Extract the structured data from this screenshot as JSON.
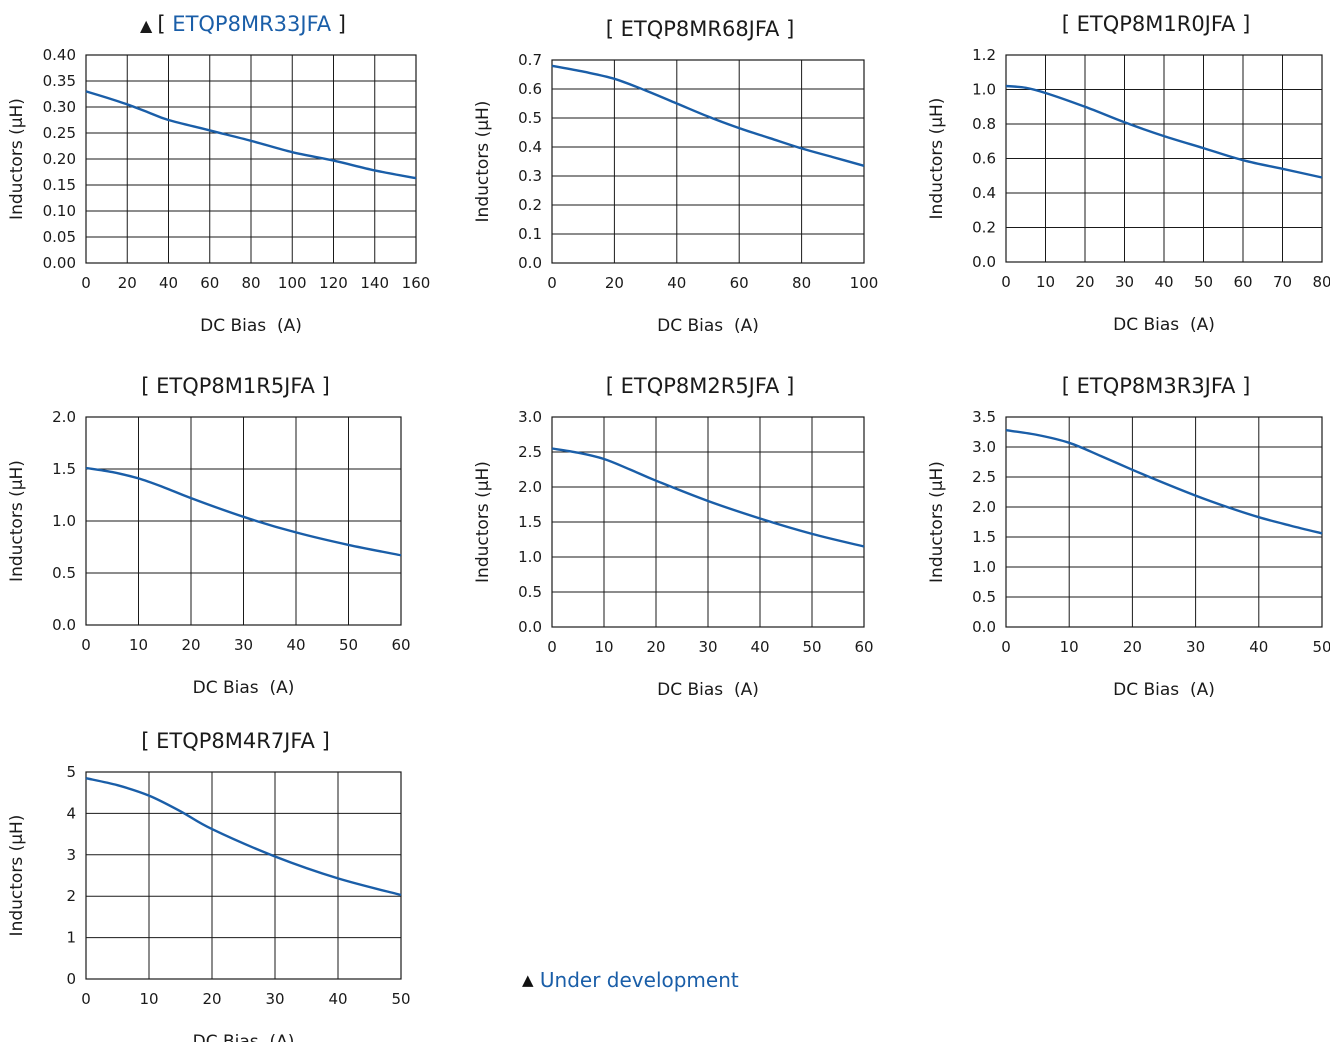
{
  "chart_data": [
    {
      "type": "line",
      "title_prefix": "▲",
      "title_open": "[ ",
      "title": "ETQP8MR33JFA",
      "title_close": " ]",
      "title_link": true,
      "xlabel": "DC Bias  (A)",
      "ylabel": "Inductors (µH)",
      "xlim": [
        0,
        160
      ],
      "ylim": [
        0,
        0.4
      ],
      "xticks": [
        0,
        20,
        40,
        60,
        80,
        100,
        120,
        140,
        160
      ],
      "xtick_labels": [
        "0",
        "20",
        "40",
        "60",
        "80",
        "100",
        "120",
        "140",
        "160"
      ],
      "yticks": [
        0,
        0.05,
        0.1,
        0.15,
        0.2,
        0.25,
        0.3,
        0.35,
        0.4
      ],
      "ytick_labels": [
        "0.00",
        "0.05",
        "0.10",
        "0.15",
        "0.20",
        "0.25",
        "0.30",
        "0.35",
        "0.40"
      ],
      "x": [
        0,
        10,
        20,
        30,
        40,
        60,
        80,
        100,
        120,
        140,
        160
      ],
      "y": [
        0.33,
        0.318,
        0.305,
        0.29,
        0.275,
        0.255,
        0.235,
        0.213,
        0.197,
        0.178,
        0.163
      ]
    },
    {
      "type": "line",
      "title_prefix": "",
      "title_open": "[ ",
      "title": "ETQP8MR68JFA",
      "title_close": " ]",
      "title_link": false,
      "xlabel": "DC Bias  (A)",
      "ylabel": "Inductors (µH)",
      "xlim": [
        0,
        100
      ],
      "ylim": [
        0,
        0.7
      ],
      "xticks": [
        0,
        20,
        40,
        60,
        80,
        100
      ],
      "xtick_labels": [
        "0",
        "20",
        "40",
        "60",
        "80",
        "100"
      ],
      "yticks": [
        0,
        0.1,
        0.2,
        0.3,
        0.4,
        0.5,
        0.6,
        0.7
      ],
      "ytick_labels": [
        "0.0",
        "0.1",
        "0.2",
        "0.3",
        "0.4",
        "0.5",
        "0.6",
        "0.7"
      ],
      "x": [
        0,
        10,
        20,
        30,
        40,
        50,
        60,
        70,
        80,
        90,
        100
      ],
      "y": [
        0.68,
        0.66,
        0.635,
        0.595,
        0.55,
        0.505,
        0.465,
        0.43,
        0.395,
        0.365,
        0.335
      ]
    },
    {
      "type": "line",
      "title_prefix": "",
      "title_open": "[ ",
      "title": "ETQP8M1R0JFA",
      "title_close": " ]",
      "title_link": false,
      "xlabel": "DC Bias  (A)",
      "ylabel": "Inductors (µH)",
      "xlim": [
        0,
        80
      ],
      "ylim": [
        0,
        1.2
      ],
      "xticks": [
        0,
        10,
        20,
        30,
        40,
        50,
        60,
        70,
        80
      ],
      "xtick_labels": [
        "0",
        "10",
        "20",
        "30",
        "40",
        "50",
        "60",
        "70",
        "80"
      ],
      "yticks": [
        0,
        0.2,
        0.4,
        0.6,
        0.8,
        1.0,
        1.2
      ],
      "ytick_labels": [
        "0.0",
        "0.2",
        "0.4",
        "0.6",
        "0.8",
        "1.0",
        "1.2"
      ],
      "x": [
        0,
        5,
        10,
        20,
        30,
        40,
        50,
        60,
        70,
        80
      ],
      "y": [
        1.02,
        1.01,
        0.98,
        0.9,
        0.81,
        0.73,
        0.66,
        0.59,
        0.54,
        0.49
      ]
    },
    {
      "type": "line",
      "title_prefix": "",
      "title_open": "[ ",
      "title": "ETQP8M1R5JFA",
      "title_close": " ]",
      "title_link": false,
      "xlabel": "DC Bias  (A)",
      "ylabel": "Inductors (µH)",
      "xlim": [
        0,
        60
      ],
      "ylim": [
        0,
        2.0
      ],
      "xticks": [
        0,
        10,
        20,
        30,
        40,
        50,
        60
      ],
      "xtick_labels": [
        "0",
        "10",
        "20",
        "30",
        "40",
        "50",
        "60"
      ],
      "yticks": [
        0,
        0.5,
        1.0,
        1.5,
        2.0
      ],
      "ytick_labels": [
        "0.0",
        "0.5",
        "1.0",
        "1.5",
        "2.0"
      ],
      "x": [
        0,
        5,
        10,
        15,
        20,
        30,
        40,
        50,
        60
      ],
      "y": [
        1.51,
        1.47,
        1.41,
        1.32,
        1.22,
        1.04,
        0.89,
        0.77,
        0.67
      ]
    },
    {
      "type": "line",
      "title_prefix": "",
      "title_open": "[ ",
      "title": "ETQP8M2R5JFA",
      "title_close": " ]",
      "title_link": false,
      "xlabel": "DC Bias  (A)",
      "ylabel": "Inductors (µH)",
      "xlim": [
        0,
        60
      ],
      "ylim": [
        0,
        3.0
      ],
      "xticks": [
        0,
        10,
        20,
        30,
        40,
        50,
        60
      ],
      "xtick_labels": [
        "0",
        "10",
        "20",
        "30",
        "40",
        "50",
        "60"
      ],
      "yticks": [
        0,
        0.5,
        1.0,
        1.5,
        2.0,
        2.5,
        3.0
      ],
      "ytick_labels": [
        "0.0",
        "0.5",
        "1.0",
        "1.5",
        "2.0",
        "2.5",
        "3.0"
      ],
      "x": [
        0,
        5,
        10,
        15,
        20,
        30,
        40,
        50,
        60
      ],
      "y": [
        2.55,
        2.49,
        2.4,
        2.25,
        2.09,
        1.8,
        1.55,
        1.33,
        1.15
      ]
    },
    {
      "type": "line",
      "title_prefix": "",
      "title_open": "[ ",
      "title": "ETQP8M3R3JFA",
      "title_close": " ]",
      "title_link": false,
      "xlabel": "DC Bias  (A)",
      "ylabel": "Inductors (µH)",
      "xlim": [
        0,
        50
      ],
      "ylim": [
        0,
        3.5
      ],
      "xticks": [
        0,
        10,
        20,
        30,
        40,
        50
      ],
      "xtick_labels": [
        "0",
        "10",
        "20",
        "30",
        "40",
        "50"
      ],
      "yticks": [
        0,
        0.5,
        1.0,
        1.5,
        2.0,
        2.5,
        3.0,
        3.5
      ],
      "ytick_labels": [
        "0.0",
        "0.5",
        "1.0",
        "1.5",
        "2.0",
        "2.5",
        "3.0",
        "3.5"
      ],
      "x": [
        0,
        5,
        10,
        15,
        20,
        25,
        30,
        35,
        40,
        45,
        50
      ],
      "y": [
        3.28,
        3.2,
        3.07,
        2.85,
        2.62,
        2.4,
        2.19,
        2.0,
        1.83,
        1.69,
        1.56
      ]
    },
    {
      "type": "line",
      "title_prefix": "",
      "title_open": "[ ",
      "title": "ETQP8M4R7JFA",
      "title_close": " ]",
      "title_link": false,
      "xlabel": "DC Bias  (A)",
      "ylabel": "Inductors (µH)",
      "xlim": [
        0,
        50
      ],
      "ylim": [
        0,
        5
      ],
      "xticks": [
        0,
        10,
        20,
        30,
        40,
        50
      ],
      "xtick_labels": [
        "0",
        "10",
        "20",
        "30",
        "40",
        "50"
      ],
      "yticks": [
        0,
        1,
        2,
        3,
        4,
        5
      ],
      "ytick_labels": [
        "0",
        "1",
        "2",
        "3",
        "4",
        "5"
      ],
      "x": [
        0,
        5,
        10,
        15,
        20,
        30,
        40,
        50
      ],
      "y": [
        4.85,
        4.68,
        4.43,
        4.05,
        3.62,
        2.96,
        2.43,
        2.03
      ]
    }
  ],
  "note": {
    "marker": "▲",
    "text": "Under development"
  },
  "colors": {
    "line": "#1a5ea8",
    "link": "#1a5ea8",
    "grid": "#1a1a1a",
    "text": "#1a1a1a"
  }
}
